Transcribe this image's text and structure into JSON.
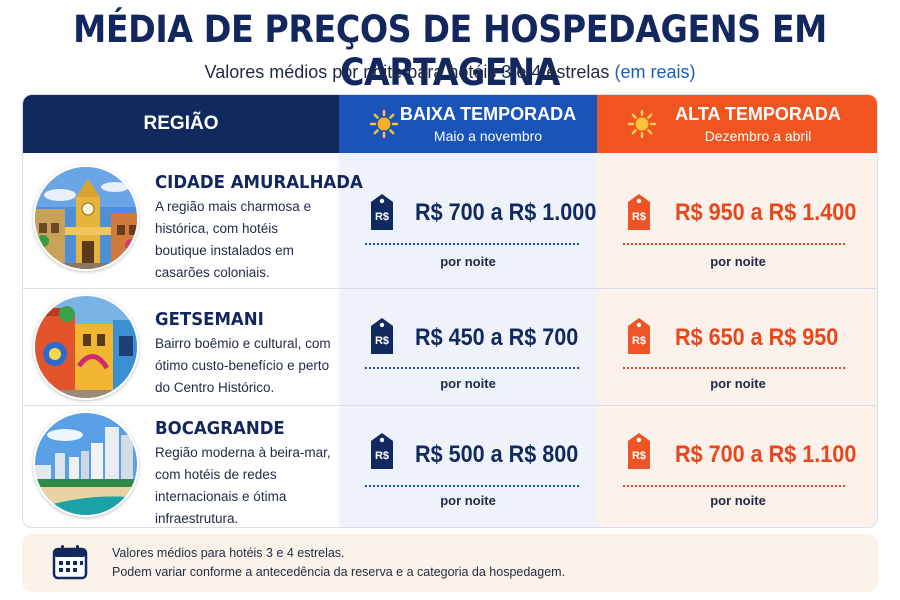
{
  "title": "MÉDIA DE PREÇOS DE HOSPEDAGENS EM CARTAGENA",
  "subtitle": {
    "text": "Valores médios por noite para hotéis 3 e 4 estrelas",
    "highlight": "(em reais)"
  },
  "headers": {
    "region": "REGIÃO",
    "low": {
      "name": "BAIXA TEMPORADA",
      "period": "Maio a novembro",
      "icon": "sun-icon"
    },
    "high": {
      "name": "ALTA TEMPORADA",
      "period": "Dezembro a abril",
      "icon": "sun-icon"
    }
  },
  "tag_label": "R$",
  "per_night": "por noite",
  "regions": [
    {
      "name": "CIDADE AMURALHADA",
      "description": "A região mais charmosa e histórica, com hotéis boutique instalados em casarões coloniais.",
      "low": "R$ 700 a R$ 1.000",
      "high": "R$ 950 a R$ 1.400",
      "photo": "clock-tower-photo"
    },
    {
      "name": "GETSEMANI",
      "description": "Bairro boêmio e cultural, com ótimo custo-benefício e perto do Centro Histórico.",
      "low": "R$ 450 a R$ 700",
      "high": "R$ 650 a R$ 950",
      "photo": "colorful-street-photo"
    },
    {
      "name": "BOCAGRANDE",
      "description": "Região moderna à beira-mar, com hotéis de redes internacionais e ótima infraestrutura.",
      "low": "R$ 500 a R$ 800",
      "high": "R$ 700 a R$ 1.100",
      "photo": "beach-skyline-photo"
    }
  ],
  "footer": {
    "icon": "calendar-icon",
    "line1": "Valores médios para hotéis 3 e 4 estrelas.",
    "line2": "Podem variar conforme a antecedência da reserva e a categoria da hospedagem."
  },
  "colors": {
    "navy": "#10295e",
    "blue": "#1b54b8",
    "orange": "#f0541f",
    "low_bg": "#eef3fb",
    "high_bg": "#fdf1ec"
  }
}
